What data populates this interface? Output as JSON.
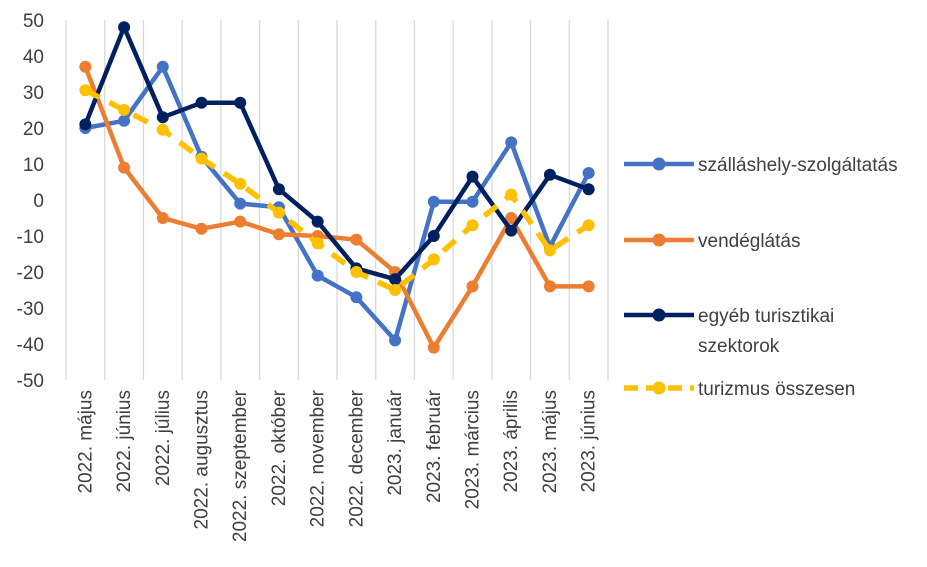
{
  "chart_data": {
    "type": "line",
    "title": "",
    "xlabel": "",
    "ylabel": "",
    "ylim": [
      -50,
      50
    ],
    "yticks": [
      50,
      40,
      30,
      20,
      10,
      0,
      -10,
      -20,
      -30,
      -40,
      -50
    ],
    "grid": "vertical",
    "legend_position": "right",
    "categories": [
      "2022. május",
      "2022. június",
      "2022. július",
      "2022. augusztus",
      "2022. szeptember",
      "2022. október",
      "2022. november",
      "2022. december",
      "2023. január",
      "2023. február",
      "2023. március",
      "2023. április",
      "2023. május",
      "2023. június"
    ],
    "series": [
      {
        "name": "szálláshely-szolgáltatás",
        "color": "#4472C4",
        "dashed": false,
        "values": [
          20,
          22,
          37,
          12,
          -1,
          -2,
          -21,
          -27,
          -39,
          -0.5,
          -0.5,
          16,
          -13,
          7.5
        ]
      },
      {
        "name": "vendéglátás",
        "color": "#ED7D31",
        "dashed": false,
        "values": [
          37,
          9,
          -5,
          -8,
          -6,
          -9.5,
          -10,
          -11,
          -20,
          -41,
          -24,
          -5,
          -24,
          -24
        ]
      },
      {
        "name": "egyéb turisztikai szektorok",
        "color": "#002060",
        "dashed": false,
        "values": [
          21,
          48,
          23,
          27,
          27,
          3,
          -6,
          -19,
          -22,
          -10,
          6.5,
          -8.5,
          7,
          3
        ]
      },
      {
        "name": "turizmus összesen",
        "color": "#FFC000",
        "dashed": true,
        "values": [
          30.5,
          25,
          19.5,
          11.5,
          4.5,
          -3.5,
          -12,
          -20,
          -25,
          -16.5,
          -7,
          1.5,
          -14,
          -7
        ]
      }
    ]
  },
  "legend": [
    {
      "lines": [
        "szálláshely-szolgáltatás"
      ]
    },
    {
      "lines": [
        "vendéglátás"
      ]
    },
    {
      "lines": [
        "egyéb turisztikai",
        "szektorok"
      ]
    },
    {
      "lines": [
        "turizmus összesen"
      ]
    }
  ]
}
